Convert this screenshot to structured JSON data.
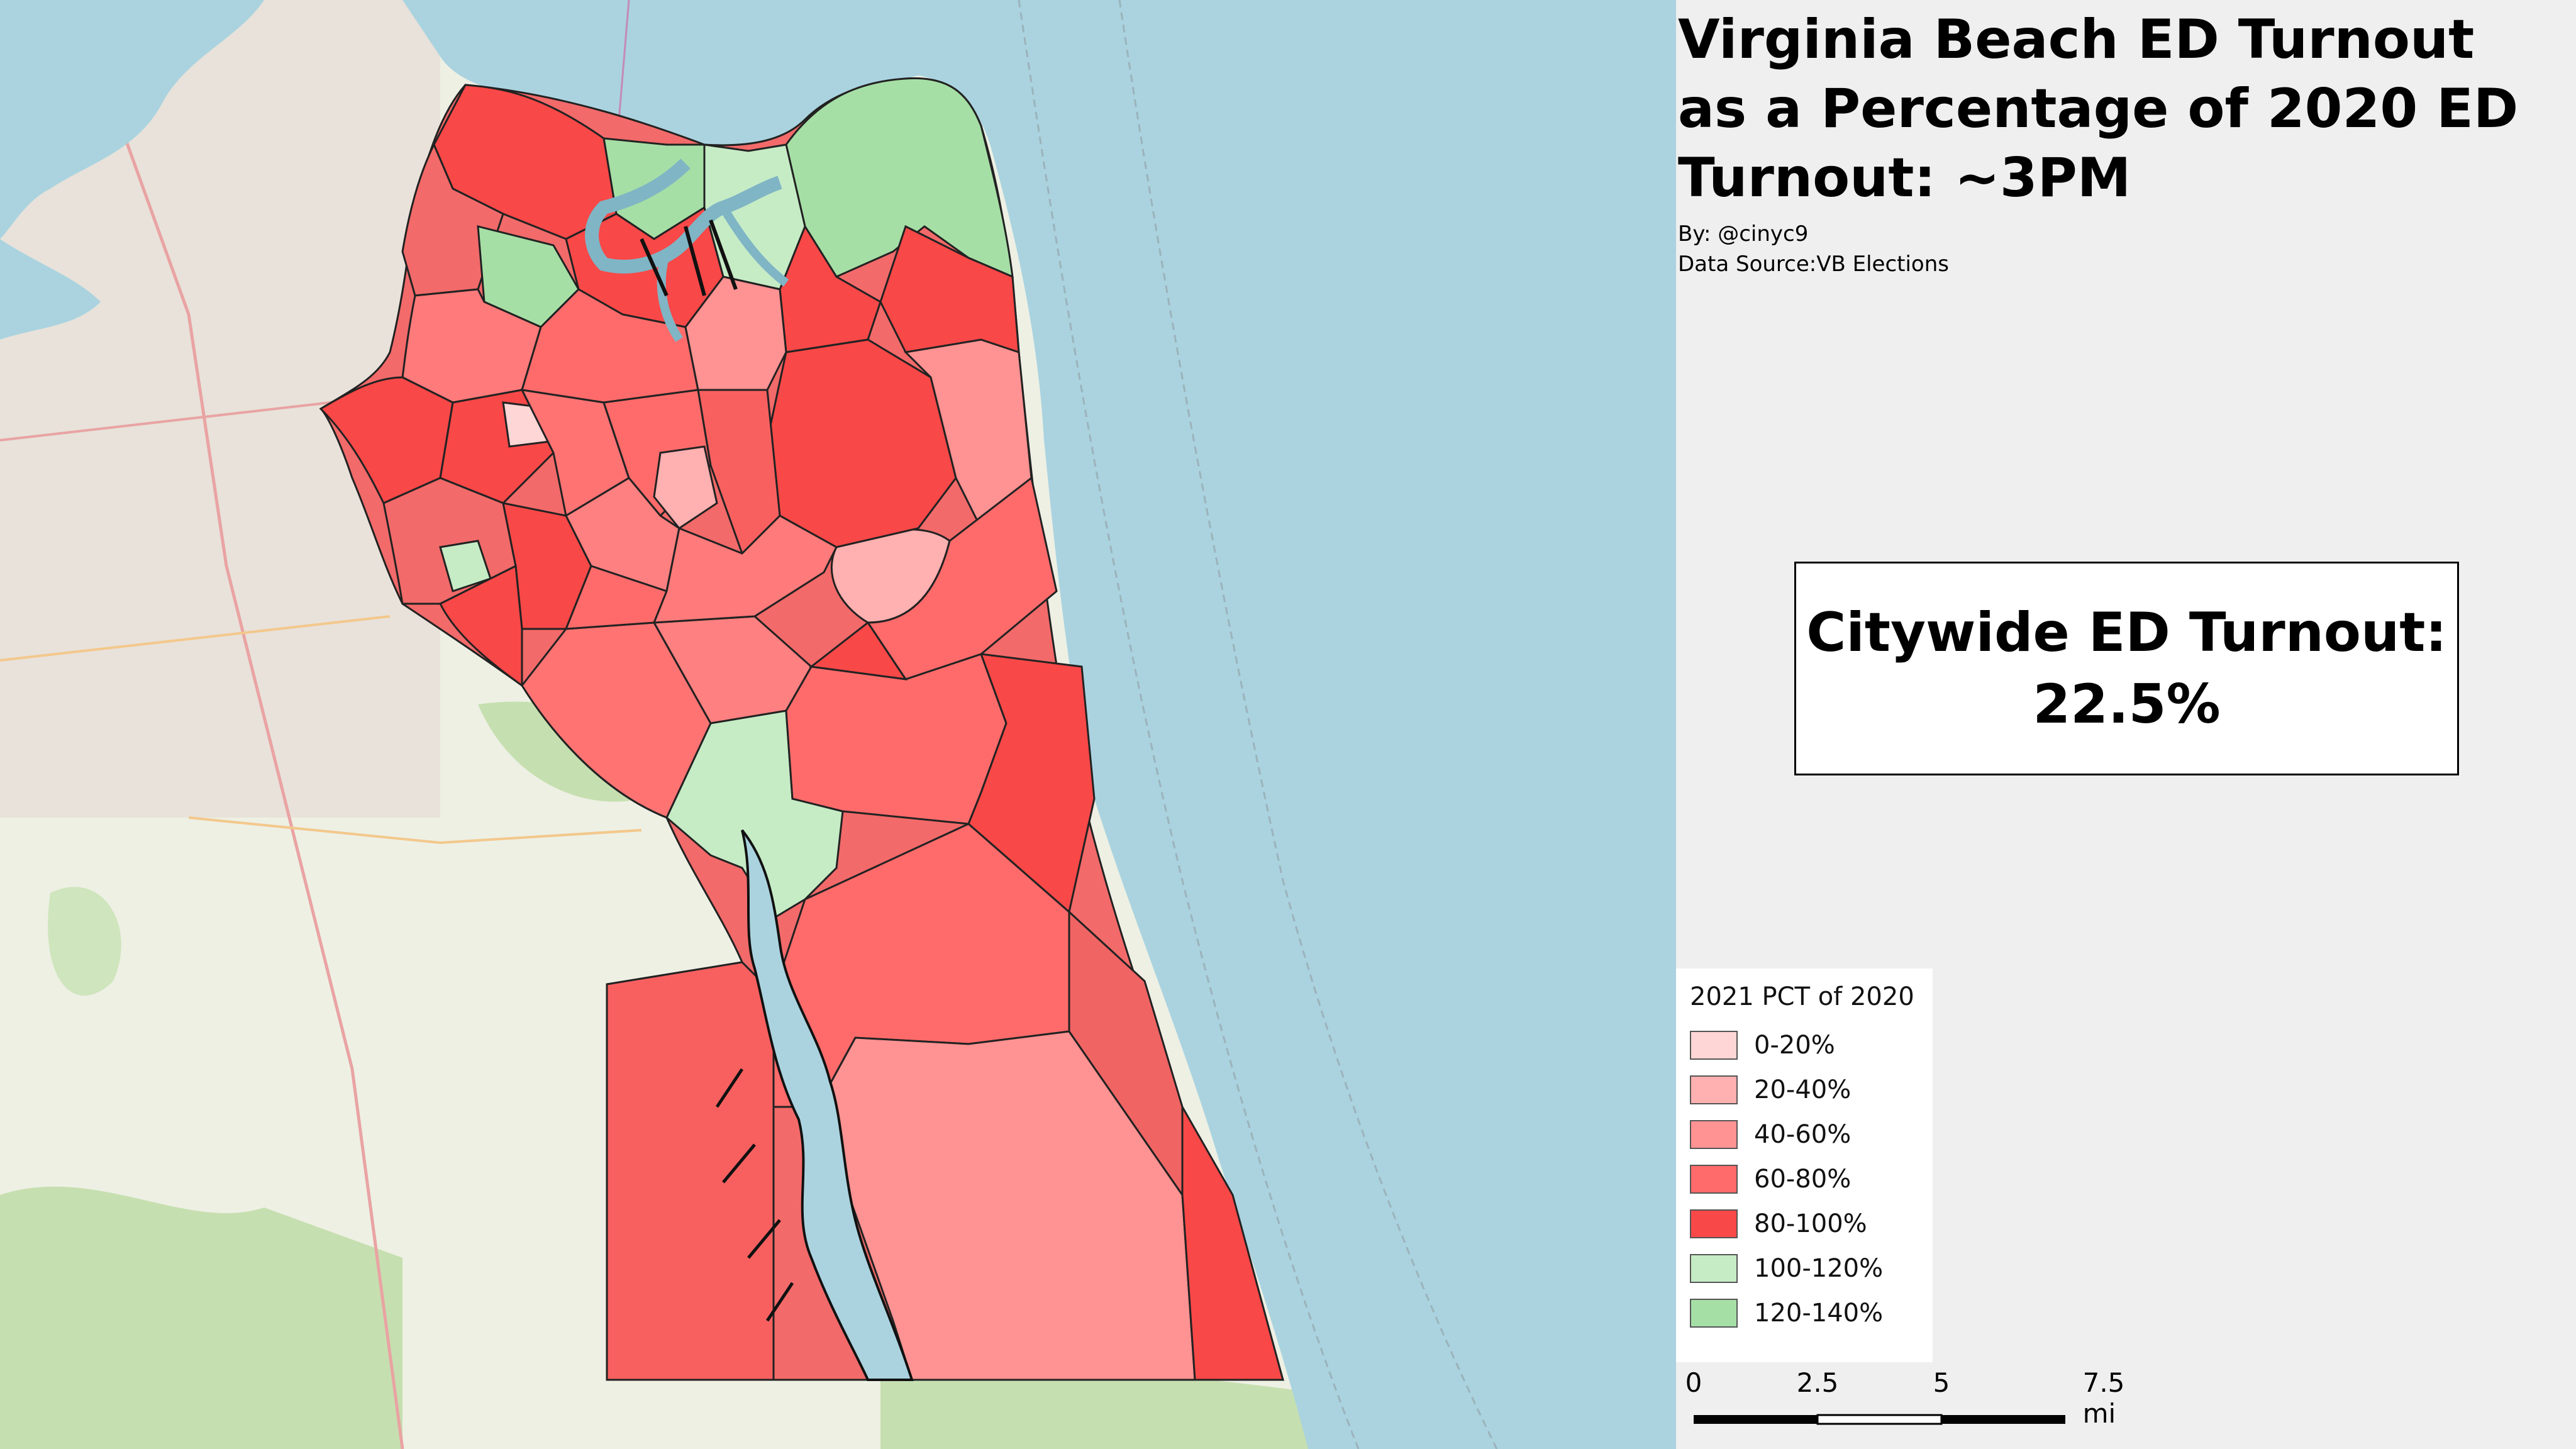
{
  "title": "Virginia Beach ED Turnout as a Percentage of 2020 ED Turnout: ~3PM",
  "author": "By: @cinyc9",
  "source": "Data Source:VB Elections",
  "summary": {
    "label": "Citywide ED Turnout:",
    "value": "22.5%"
  },
  "legend": {
    "title": "2021 PCT of 2020",
    "classes": [
      {
        "label": "0-20%",
        "color": "#ffd6d6"
      },
      {
        "label": "20-40%",
        "color": "#ffb0b0"
      },
      {
        "label": "40-60%",
        "color": "#ff9292"
      },
      {
        "label": "60-80%",
        "color": "#ff6b6b"
      },
      {
        "label": "80-100%",
        "color": "#f84848"
      },
      {
        "label": "100-120%",
        "color": "#c6ecc6"
      },
      {
        "label": "120-140%",
        "color": "#a6dfa6"
      }
    ]
  },
  "scale": {
    "ticks": [
      "0",
      "2.5",
      "5",
      "7.5 mi"
    ]
  },
  "colors": {
    "water": "#aad3df",
    "land": "#eef0e4",
    "park": "#c6dfb0",
    "boundary": "#222222"
  }
}
